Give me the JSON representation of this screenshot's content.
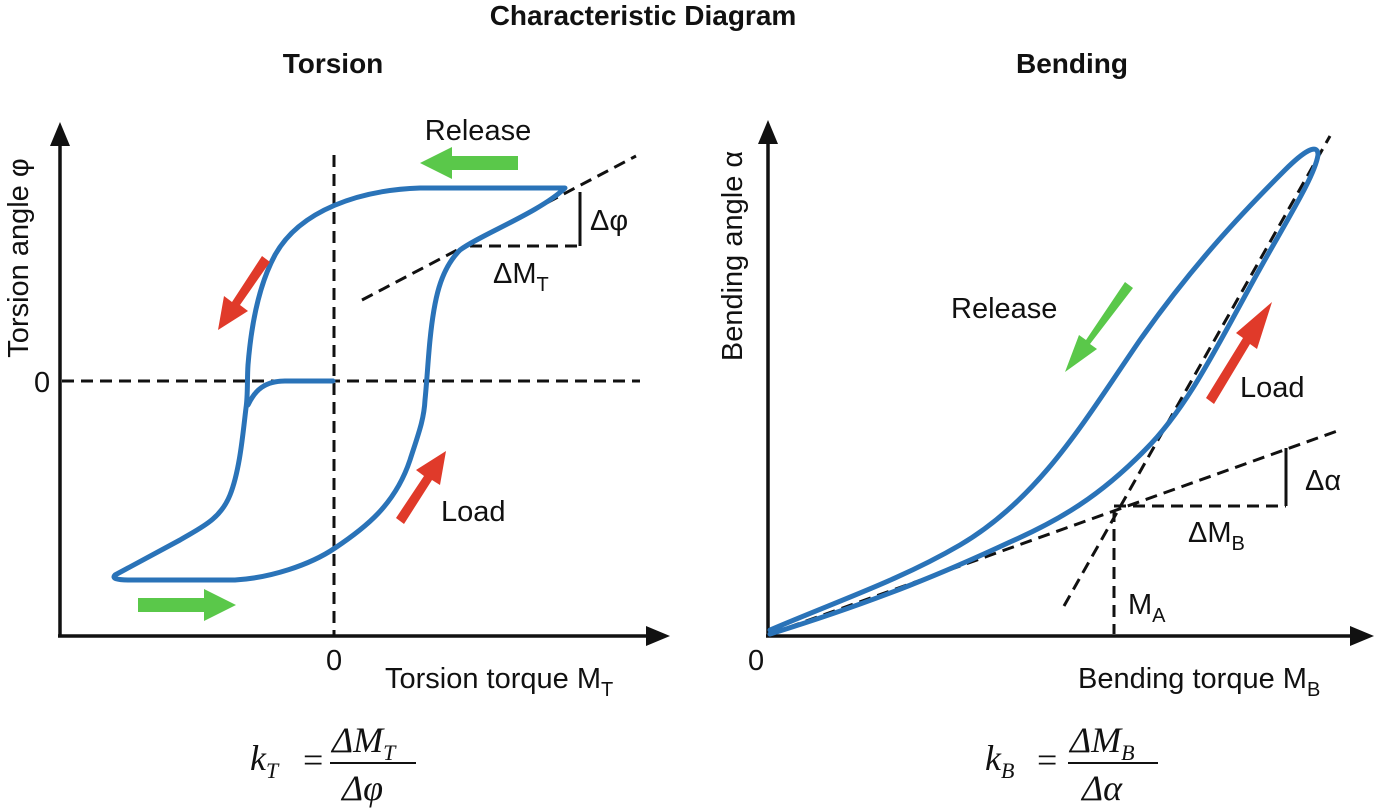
{
  "title": "Characteristic Diagram",
  "torsion": {
    "heading": "Torsion",
    "y_label": "Torsion angle φ",
    "x_label_main": "Torsion torque M",
    "x_label_sub": "T",
    "zero_y": "0",
    "zero_x": "0",
    "release": "Release",
    "load": "Load",
    "delta_phi": "Δφ",
    "delta_m_main": "ΔM",
    "delta_m_sub": "T",
    "formula": {
      "k": "k",
      "k_sub": "T",
      "eq": "=",
      "num": "ΔM",
      "num_sub": "T",
      "den": "Δφ"
    }
  },
  "bending": {
    "heading": "Bending",
    "y_label": "Bending angle α",
    "x_label_main": "Bending torque M",
    "x_label_sub": "B",
    "zero": "0",
    "release": "Release",
    "load": "Load",
    "delta_alpha": "Δα",
    "delta_m_main": "ΔM",
    "delta_m_sub": "B",
    "ma_main": "M",
    "ma_sub": "A",
    "formula": {
      "k": "k",
      "k_sub": "B",
      "eq": "=",
      "num": "ΔM",
      "num_sub": "B",
      "den": "Δα"
    }
  },
  "colors": {
    "curve": "#2a73b8",
    "load_arrow": "#e03a2a",
    "release_arrow": "#5ac84a",
    "ink": "#111111"
  }
}
